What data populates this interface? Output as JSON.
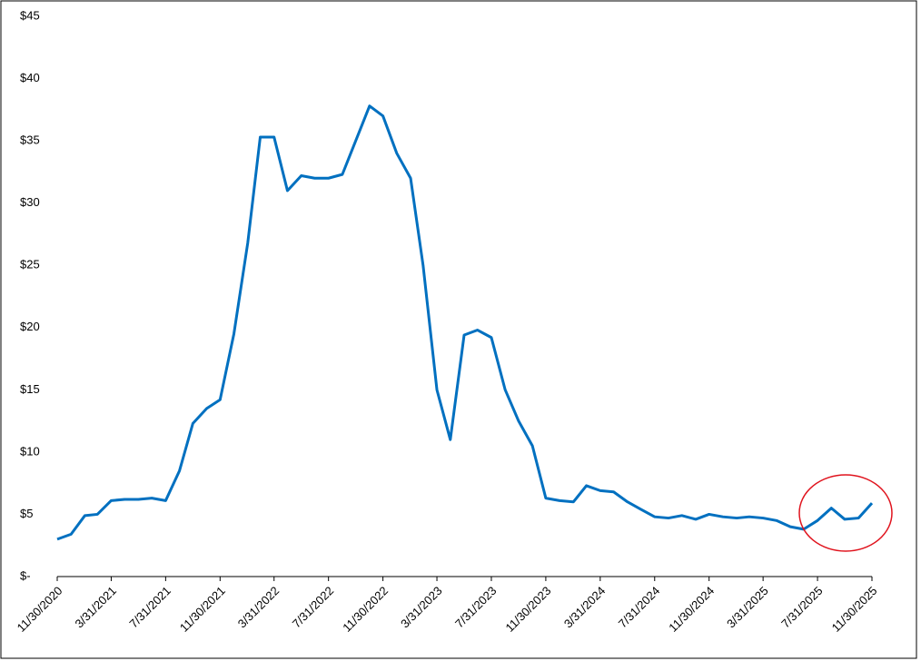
{
  "chart_data": {
    "type": "line",
    "x": [
      "11/30/2020",
      "12/31/2020",
      "1/31/2021",
      "2/28/2021",
      "3/31/2021",
      "4/30/2021",
      "5/31/2021",
      "6/30/2021",
      "7/31/2021",
      "8/31/2021",
      "9/30/2021",
      "10/31/2021",
      "11/30/2021",
      "12/31/2021",
      "1/31/2022",
      "2/28/2022",
      "3/31/2022",
      "4/30/2022",
      "5/31/2022",
      "6/30/2022",
      "7/31/2022",
      "8/31/2022",
      "9/30/2022",
      "10/31/2022",
      "11/30/2022",
      "12/31/2022",
      "1/31/2023",
      "2/28/2023",
      "3/31/2023",
      "4/30/2023",
      "5/31/2023",
      "6/30/2023",
      "7/31/2023",
      "8/31/2023",
      "9/30/2023",
      "10/31/2023",
      "11/30/2023",
      "12/31/2023",
      "1/31/2024",
      "2/29/2024",
      "3/31/2024",
      "4/30/2024",
      "5/31/2024",
      "6/30/2024",
      "7/31/2024",
      "8/31/2024",
      "9/30/2024",
      "10/31/2024",
      "11/30/2024",
      "12/31/2024",
      "1/31/2025",
      "2/28/2025",
      "3/31/2025",
      "4/30/2025",
      "5/31/2025",
      "6/30/2025",
      "7/31/2025",
      "8/31/2025",
      "9/30/2025",
      "10/31/2025",
      "11/30/2025"
    ],
    "series": [
      {
        "color": "#0070c0",
        "values": [
          3.0,
          3.4,
          4.9,
          5.0,
          6.1,
          6.2,
          6.2,
          6.3,
          6.1,
          8.5,
          12.3,
          13.5,
          14.2,
          19.5,
          26.8,
          35.3,
          35.3,
          31.0,
          32.2,
          32.0,
          32.0,
          32.3,
          35.0,
          37.8,
          37.0,
          34.0,
          32.0,
          25.0,
          15.0,
          11.0,
          19.4,
          19.8,
          19.2,
          15.0,
          12.5,
          10.5,
          6.3,
          6.1,
          6.0,
          7.3,
          6.9,
          6.8,
          6.0,
          5.4,
          4.8,
          4.7,
          4.9,
          4.6,
          5.0,
          4.8,
          4.7,
          4.8,
          4.7,
          4.5,
          4.0,
          3.8,
          4.5,
          5.5,
          4.6,
          4.7,
          5.9
        ]
      }
    ],
    "xlim": [
      "11/30/2020",
      "11/30/2025"
    ],
    "xticks": [
      "11/30/2020",
      "3/31/2021",
      "7/31/2021",
      "11/30/2021",
      "3/31/2022",
      "7/31/2022",
      "11/30/2022",
      "3/31/2023",
      "7/31/2023",
      "11/30/2023",
      "3/31/2024",
      "7/31/2024",
      "11/30/2024",
      "3/31/2025",
      "7/31/2025",
      "11/30/2025"
    ],
    "ylim": [
      0,
      45
    ],
    "yticks": [
      {
        "value": 0,
        "label": "$-"
      },
      {
        "value": 5,
        "label": "$5"
      },
      {
        "value": 10,
        "label": "$10"
      },
      {
        "value": 15,
        "label": "$15"
      },
      {
        "value": 20,
        "label": "$20"
      },
      {
        "value": 25,
        "label": "$25"
      },
      {
        "value": 30,
        "label": "$30"
      },
      {
        "value": 35,
        "label": "$35"
      },
      {
        "value": 40,
        "label": "$40"
      },
      {
        "value": 45,
        "label": "$45"
      }
    ]
  }
}
